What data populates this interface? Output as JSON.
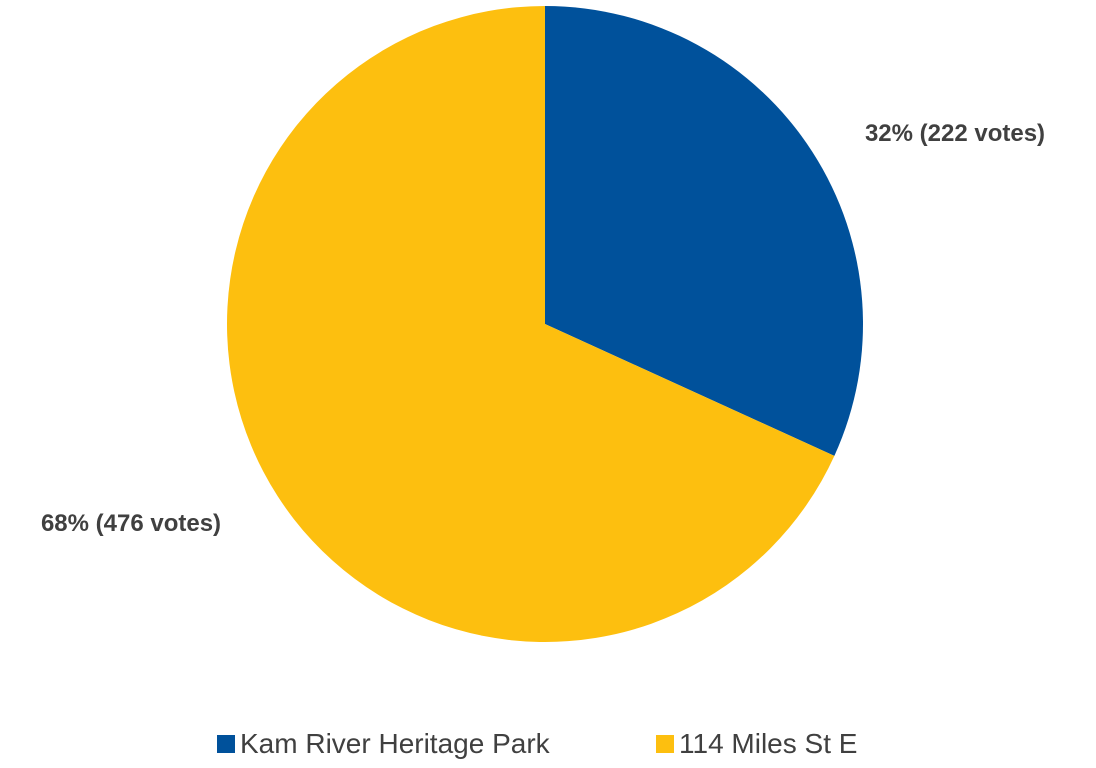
{
  "chart_data": {
    "type": "pie",
    "categories": [
      "Kam River Heritage Park",
      "114 Miles St E"
    ],
    "values": [
      222,
      476
    ],
    "percentages": [
      32,
      68
    ],
    "data_labels": [
      "32% (222 votes)",
      "68% (476 votes)"
    ],
    "colors": [
      "#00519B",
      "#FDBF0F"
    ],
    "title": "",
    "legend_position": "bottom",
    "start_angle": "12 o'clock",
    "direction": "clockwise"
  },
  "legend": {
    "items": [
      {
        "label": "Kam River Heritage Park",
        "color": "#00519B"
      },
      {
        "label": "114 Miles St E",
        "color": "#FDBF0F"
      }
    ]
  }
}
